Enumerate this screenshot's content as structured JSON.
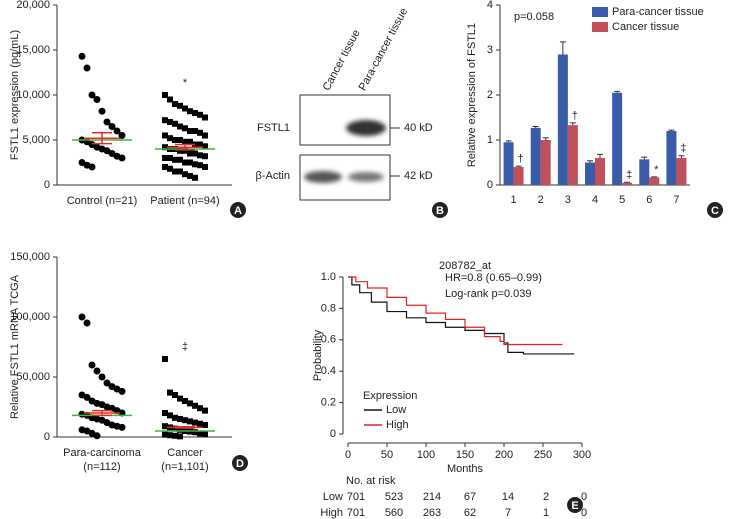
{
  "chart_data": [
    {
      "type": "dotplot",
      "panel_label": "A",
      "ylabel": "FSTL1 expression (pg/mL)",
      "ylim": [
        0,
        20000
      ],
      "yticks": [
        0,
        {
          "value": 5000,
          "label": "5,000"
        },
        {
          "value": 10000,
          "label": "10,000"
        },
        {
          "value": 15000,
          "label": "15,000"
        },
        {
          "value": 20000,
          "label": "20,000"
        }
      ],
      "mean_color": "#e0302a",
      "median_color": "#3cb83c",
      "groups": [
        {
          "name": "Control (n=21)",
          "marker": "circle",
          "values": [
            14300,
            13000,
            10000,
            9500,
            8200,
            7000,
            6500,
            6000,
            5500,
            5000,
            4800,
            4500,
            4200,
            4000,
            3800,
            3500,
            3200,
            3000,
            2500,
            2200,
            2000
          ],
          "mean": 5200,
          "sem": 600,
          "median": 5000
        },
        {
          "name": "Patient (n=94)",
          "marker": "square",
          "annotation": "*",
          "values": [
            10000,
            9500,
            9000,
            8800,
            8500,
            8200,
            8000,
            7800,
            7500,
            7200,
            7000,
            6800,
            6500,
            6300,
            6000,
            6000,
            5800,
            5500,
            5500,
            5200,
            5000,
            5000,
            4800,
            4800,
            4500,
            4500,
            4300,
            4200,
            4000,
            4000,
            3800,
            3800,
            3500,
            3500,
            3300,
            3200,
            3000,
            3000,
            2800,
            2800,
            2500,
            2500,
            2300,
            2200,
            2000,
            2000,
            1800,
            1500,
            1500,
            1200,
            1000,
            800
          ],
          "mean": 4200,
          "sem": 300,
          "median": 4000
        }
      ]
    },
    {
      "type": "bar",
      "panel_label": "C",
      "ylabel": "Relative expression of FSTL1",
      "annotation": "p=0.058",
      "ylim": [
        0,
        4
      ],
      "yticks": [
        0,
        1,
        2,
        3,
        4
      ],
      "categories": [
        "1",
        "2",
        "3",
        "4",
        "5",
        "6",
        "7"
      ],
      "series": [
        {
          "name": "Para-cancer tissue",
          "color": "#3a5ba8",
          "values": [
            0.95,
            1.27,
            2.9,
            0.5,
            2.05,
            0.57,
            1.2
          ],
          "errors": [
            0.03,
            0.03,
            0.28,
            0.04,
            0.03,
            0.05,
            0.02
          ]
        },
        {
          "name": "Cancer tissue",
          "color": "#c0505a",
          "values": [
            0.4,
            1.0,
            1.33,
            0.6,
            0.05,
            0.17,
            0.6
          ],
          "errors": [
            0.02,
            0.05,
            0.05,
            0.08,
            0.01,
            0.01,
            0.05
          ],
          "annotations": [
            "†",
            null,
            "†",
            null,
            "‡",
            "*",
            "‡"
          ]
        }
      ]
    },
    {
      "type": "dotplot",
      "panel_label": "D",
      "ylabel": "Relative FSTL1 mRNA TCGA",
      "ylim": [
        0,
        150000
      ],
      "yticks": [
        0,
        {
          "value": 50000,
          "label": "50,000"
        },
        {
          "value": 100000,
          "label": "100,000"
        },
        {
          "value": 150000,
          "label": "150,000"
        }
      ],
      "mean_color": "#e0302a",
      "median_color": "#3cb83c",
      "groups": [
        {
          "name": "Para-carcinoma",
          "n_label": "(n=112)",
          "marker": "circle",
          "values": [
            100000,
            95000,
            60000,
            55000,
            50000,
            45000,
            42000,
            40000,
            38000,
            35000,
            33000,
            30000,
            28000,
            27000,
            25000,
            24000,
            22000,
            20000,
            19000,
            18000,
            16000,
            15000,
            14000,
            12000,
            10000,
            9000,
            8000,
            6000,
            5000,
            3000,
            1000
          ],
          "mean": 20000,
          "sem": 2000,
          "median": 18000
        },
        {
          "name": "Cancer",
          "n_label": "(n=1,101)",
          "marker": "square",
          "annotation": "‡",
          "values": [
            65000,
            37000,
            35000,
            32000,
            30000,
            28000,
            26000,
            24000,
            22000,
            20000,
            18000,
            16000,
            15000,
            14000,
            13000,
            12000,
            11000,
            10000,
            9000,
            8000,
            7000,
            6000,
            5000,
            4500,
            4000,
            3000,
            2500,
            2000,
            1500,
            1000,
            500
          ],
          "mean": 8000,
          "sem": 500,
          "median": 5000
        }
      ]
    },
    {
      "type": "km",
      "panel_label": "E",
      "title": "208782_at",
      "xlabel": "Months",
      "ylabel": "Probability",
      "xlim": [
        0,
        300
      ],
      "xticks": [
        0,
        50,
        100,
        150,
        200,
        250,
        300
      ],
      "ylim": [
        0,
        1.0
      ],
      "yticks": [
        0,
        0.2,
        0.4,
        0.6,
        0.8,
        {
          "value": 1.0,
          "label": "1.0"
        }
      ],
      "annotations": [
        "HR=0.8 (0.65–0.99)",
        "Log-rank p=0.039"
      ],
      "legend_title": "Expression",
      "series": [
        {
          "name": "Low",
          "color": "#111111",
          "x": [
            0,
            5,
            15,
            30,
            50,
            75,
            100,
            125,
            150,
            175,
            200,
            205,
            225,
            290
          ],
          "values": [
            1.0,
            0.95,
            0.9,
            0.84,
            0.78,
            0.74,
            0.71,
            0.68,
            0.66,
            0.64,
            0.58,
            0.52,
            0.51,
            0.51
          ]
        },
        {
          "name": "High",
          "color": "#e02020",
          "x": [
            0,
            10,
            25,
            50,
            75,
            100,
            125,
            150,
            175,
            195,
            200,
            275
          ],
          "values": [
            1.0,
            0.97,
            0.93,
            0.87,
            0.82,
            0.77,
            0.73,
            0.68,
            0.62,
            0.59,
            0.57,
            0.57
          ]
        }
      ],
      "risk_table": {
        "title": "No. at risk",
        "rows": [
          {
            "name": "Low",
            "values": [
              701,
              523,
              214,
              67,
              14,
              2,
              0
            ]
          },
          {
            "name": "High",
            "values": [
              701,
              560,
              263,
              62,
              7,
              1,
              0
            ]
          }
        ]
      }
    }
  ],
  "blot": {
    "panel_label": "B",
    "lanes": [
      "Cancer tissue",
      "Para-cancer tissue"
    ],
    "bands": [
      {
        "name": "FSTL1",
        "size": "40 kD"
      },
      {
        "name": "β-Actin",
        "size": "42 kD"
      }
    ]
  }
}
